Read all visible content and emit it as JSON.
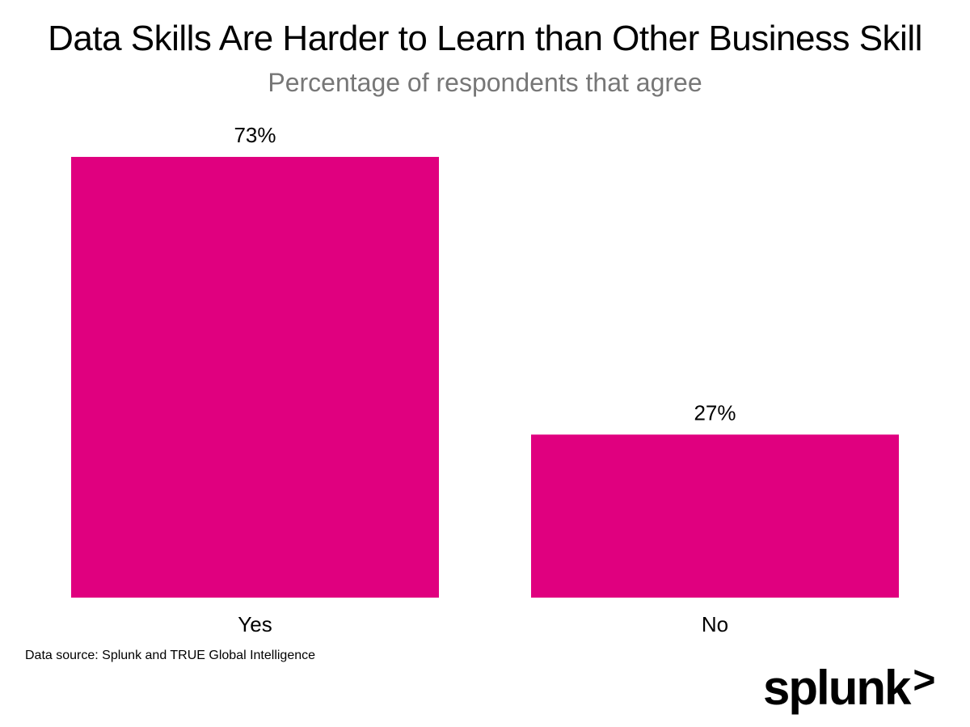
{
  "chart_data": {
    "type": "bar",
    "title": "Data Skills Are Harder to Learn than Other Business Skill",
    "subtitle": "Percentage of respondents that agree",
    "categories": [
      "Yes",
      "No"
    ],
    "values": [
      73,
      27
    ],
    "value_labels": [
      "73%",
      "27%"
    ],
    "ylim": [
      0,
      73
    ],
    "grid": false,
    "bar_color": "#E0007F"
  },
  "footer": {
    "source": "Data source: Splunk and TRUE Global Intelligence",
    "logo_text": "splunk",
    "logo_chevron": ">"
  },
  "colors": {
    "bar": "#E0007F",
    "subtitle": "#777777",
    "text": "#000000"
  }
}
